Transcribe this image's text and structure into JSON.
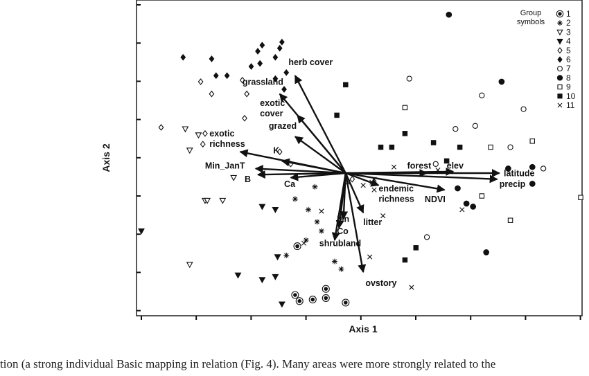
{
  "chart_data": {
    "type": "scatter",
    "xlabel": "Axis 1",
    "ylabel": "Axis 2",
    "xlim": [
      0,
      100
    ],
    "ylim": [
      0,
      100
    ],
    "grid": false,
    "legend": {
      "title_lines": [
        "Group",
        "symbols"
      ],
      "placement": "top-right",
      "entries": [
        {
          "label": "1",
          "symbol": "circle-dot"
        },
        {
          "label": "2",
          "symbol": "asterisk"
        },
        {
          "label": "3",
          "symbol": "triangle-down-open"
        },
        {
          "label": "4",
          "symbol": "triangle-down-filled"
        },
        {
          "label": "5",
          "symbol": "diamond-open"
        },
        {
          "label": "6",
          "symbol": "diamond-filled"
        },
        {
          "label": "7",
          "symbol": "circle-open"
        },
        {
          "label": "8",
          "symbol": "circle-filled"
        },
        {
          "label": "9",
          "symbol": "square-open"
        },
        {
          "label": "10",
          "symbol": "square-filled"
        },
        {
          "label": "11",
          "symbol": "cross"
        }
      ]
    },
    "origin": [
      46.5,
      45
    ],
    "vectors": [
      {
        "label": "herb cover",
        "tip": [
          35,
          77
        ],
        "anchor": [
          33.5,
          80.5
        ]
      },
      {
        "label": "grassland",
        "tip": [
          31.5,
          71
        ],
        "anchor": [
          23,
          74
        ]
      },
      {
        "label": "exotic cover",
        "tip": [
          35.5,
          64
        ],
        "anchor": [
          27,
          67
        ]
      },
      {
        "label": "grazed",
        "tip": [
          35,
          57
        ],
        "anchor": [
          29,
          59.5
        ]
      },
      {
        "label": "exotic richness",
        "tip": [
          22.5,
          52
        ],
        "anchor": [
          15.5,
          57
        ]
      },
      {
        "label": "K",
        "tip": [
          32,
          49
        ],
        "anchor": [
          30,
          51.5
        ]
      },
      {
        "label": "Min_JanT",
        "tip": [
          26,
          46.5
        ],
        "anchor": [
          14.5,
          46.5
        ]
      },
      {
        "label": "B",
        "tip": [
          26.5,
          44.5
        ],
        "anchor": [
          23.5,
          42
        ]
      },
      {
        "label": "Ca",
        "tip": [
          34,
          43.5
        ],
        "anchor": [
          32.5,
          40.5
        ]
      },
      {
        "label": "forest",
        "tip": [
          65,
          45
        ],
        "anchor": [
          60.5,
          46.5
        ]
      },
      {
        "label": "elev",
        "tip": [
          71,
          45.5
        ],
        "anchor": [
          69.5,
          46.5
        ]
      },
      {
        "label": "latitude",
        "tip": [
          81.5,
          45
        ],
        "anchor": [
          82.5,
          44
        ]
      },
      {
        "label": "precip",
        "tip": [
          81,
          43
        ],
        "anchor": [
          81.5,
          40.5
        ]
      },
      {
        "label": "endemic richness",
        "tip": [
          54,
          41
        ],
        "anchor": [
          54,
          39
        ]
      },
      {
        "label": "NDVI",
        "tip": [
          69,
          39.5
        ],
        "anchor": [
          64.5,
          35.5
        ]
      },
      {
        "label": "Mn",
        "tip": [
          46,
          30
        ],
        "anchor": [
          44.5,
          29
        ]
      },
      {
        "label": "Co",
        "tip": [
          45,
          27
        ],
        "anchor": [
          44.5,
          25
        ]
      },
      {
        "label": "litter",
        "tip": [
          50.5,
          32
        ],
        "anchor": [
          50.5,
          28
        ]
      },
      {
        "label": "shrubland",
        "tip": [
          44,
          23
        ],
        "anchor": [
          40.5,
          21
        ]
      },
      {
        "label": "ovstory",
        "tip": [
          50.5,
          12.5
        ],
        "anchor": [
          51,
          8
        ]
      }
    ],
    "points": {
      "1": [
        [
          35.5,
          21
        ],
        [
          35,
          5
        ],
        [
          36,
          3
        ],
        [
          39,
          3.5
        ],
        [
          42,
          7
        ],
        [
          42,
          4
        ],
        [
          46.5,
          2.5
        ]
      ],
      "2": [
        [
          39.5,
          40.5
        ],
        [
          35,
          36.5
        ],
        [
          38,
          33
        ],
        [
          40,
          29
        ],
        [
          41,
          26
        ],
        [
          37.5,
          23
        ],
        [
          33,
          18
        ],
        [
          44,
          16
        ],
        [
          45.5,
          13.5
        ]
      ],
      "3": [
        [
          10,
          59.5
        ],
        [
          13,
          57.5
        ],
        [
          11,
          52.5
        ],
        [
          21,
          43.5
        ],
        [
          18.5,
          36
        ],
        [
          14.5,
          36
        ],
        [
          15,
          36
        ],
        [
          11,
          15
        ]
      ],
      "4": [
        [
          0,
          26
        ],
        [
          27.5,
          34
        ],
        [
          30.5,
          33
        ],
        [
          31,
          17.5
        ],
        [
          22,
          11.5
        ],
        [
          27.5,
          10
        ],
        [
          30.5,
          11
        ],
        [
          32,
          2
        ]
      ],
      "5": [
        [
          4.5,
          60
        ],
        [
          14.5,
          58
        ],
        [
          14,
          54.5
        ],
        [
          13.5,
          75
        ],
        [
          16,
          71
        ],
        [
          23,
          75.5
        ],
        [
          24,
          71
        ],
        [
          23.5,
          63
        ],
        [
          31.5,
          52
        ],
        [
          34,
          48
        ],
        [
          48,
          43
        ]
      ],
      "6": [
        [
          9.5,
          83
        ],
        [
          16,
          82.5
        ],
        [
          17,
          77
        ],
        [
          19.5,
          77
        ],
        [
          25,
          80
        ],
        [
          26.5,
          85
        ],
        [
          27,
          81
        ],
        [
          27.5,
          87
        ],
        [
          32,
          88
        ],
        [
          31.5,
          86
        ],
        [
          30.5,
          83
        ],
        [
          33,
          78
        ],
        [
          32.5,
          72.5
        ],
        [
          30.5,
          76
        ]
      ],
      "7": [
        [
          61,
          76
        ],
        [
          67,
          48
        ],
        [
          71.5,
          59.5
        ],
        [
          76,
          60.5
        ],
        [
          77.5,
          70.5
        ],
        [
          87,
          66
        ],
        [
          84,
          53.5
        ],
        [
          91.5,
          46.5
        ],
        [
          65,
          24
        ]
      ],
      "8": [
        [
          70,
          97
        ],
        [
          82,
          75
        ],
        [
          83.5,
          46.5
        ],
        [
          89,
          47
        ],
        [
          89,
          41.5
        ],
        [
          72,
          40
        ],
        [
          74,
          35
        ],
        [
          75.5,
          34
        ],
        [
          78.5,
          19
        ]
      ],
      "9": [
        [
          60,
          66.5
        ],
        [
          79.5,
          53.5
        ],
        [
          89,
          55.5
        ],
        [
          77.5,
          37.5
        ],
        [
          84,
          29.5
        ],
        [
          100,
          37
        ]
      ],
      "10": [
        [
          46.5,
          74
        ],
        [
          44.5,
          64
        ],
        [
          60,
          58
        ],
        [
          54.5,
          53.5
        ],
        [
          57,
          53.5
        ],
        [
          66.5,
          55
        ],
        [
          72.5,
          53.5
        ],
        [
          69.5,
          49
        ],
        [
          62.5,
          20.5
        ],
        [
          60,
          16.5
        ]
      ],
      "11": [
        [
          41,
          32.5
        ],
        [
          50.5,
          41
        ],
        [
          53,
          43
        ],
        [
          52.5,
          42
        ],
        [
          47,
          42
        ],
        [
          57.5,
          47
        ],
        [
          67.5,
          46
        ],
        [
          55,
          31
        ],
        [
          73,
          33
        ],
        [
          37,
          22
        ],
        [
          52,
          17.5
        ],
        [
          61.5,
          7.5
        ],
        [
          53,
          39.5
        ]
      ]
    }
  },
  "caption": "tion (a strong individual Basic mapping in relation (Fig. 4). Many areas were more strongly related to the"
}
